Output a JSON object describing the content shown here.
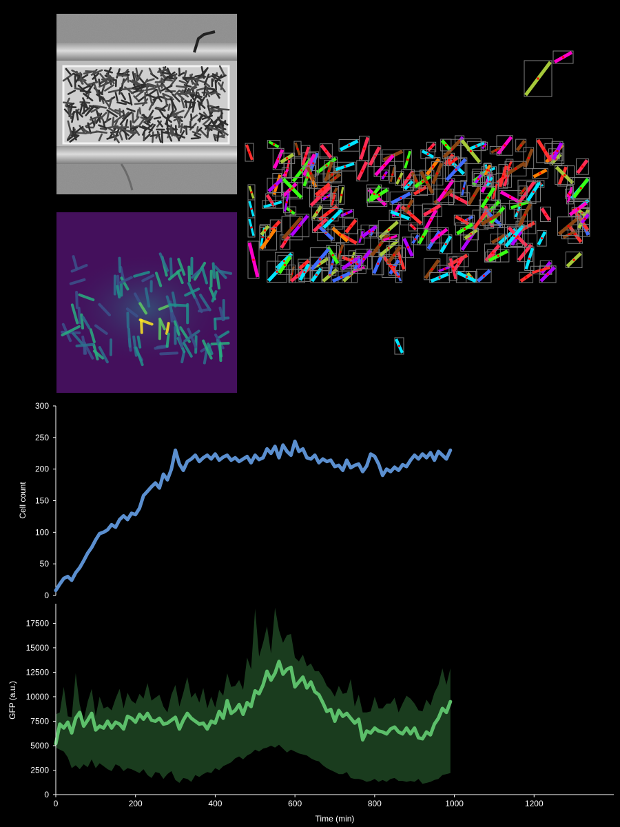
{
  "figure": {
    "background": "#000000",
    "panel_phase": {
      "name": "phase-contrast-image",
      "colormap": "gray"
    },
    "panel_fluor": {
      "name": "fluorescence-image",
      "colormap": "viridis"
    },
    "panel_segmentation": {
      "name": "segmentation-overlay",
      "box_color": "#7f7f7f",
      "centroid_color": "#ff0000"
    }
  },
  "chart_data": [
    {
      "id": "cell-count",
      "type": "line",
      "xlabel": "",
      "ylabel": "Cell count",
      "xlim": [
        0,
        1400
      ],
      "ylim": [
        0,
        300
      ],
      "yticks": [
        0,
        50,
        100,
        150,
        200,
        250,
        300
      ],
      "xticks": [],
      "color": "#5b8fcf",
      "x": [
        0,
        10,
        20,
        30,
        40,
        50,
        60,
        70,
        80,
        90,
        100,
        110,
        120,
        130,
        140,
        150,
        160,
        170,
        180,
        190,
        200,
        210,
        220,
        230,
        240,
        250,
        260,
        270,
        280,
        290,
        300,
        310,
        320,
        330,
        340,
        350,
        360,
        370,
        380,
        390,
        400,
        410,
        420,
        430,
        440,
        450,
        460,
        470,
        480,
        490,
        500,
        510,
        520,
        530,
        540,
        550,
        560,
        570,
        580,
        590,
        600,
        610,
        620,
        630,
        640,
        650,
        660,
        670,
        680,
        690,
        700,
        710,
        720,
        730,
        740,
        750,
        760,
        770,
        780,
        790,
        800,
        810,
        820,
        830,
        840,
        850,
        860,
        870,
        880,
        890,
        900,
        910,
        920,
        930,
        940,
        950,
        960,
        970,
        980,
        990
      ],
      "values": [
        8,
        18,
        27,
        30,
        24,
        36,
        44,
        55,
        67,
        76,
        88,
        98,
        100,
        104,
        112,
        108,
        120,
        126,
        120,
        130,
        128,
        138,
        158,
        165,
        172,
        178,
        170,
        192,
        183,
        200,
        230,
        208,
        198,
        212,
        216,
        222,
        212,
        218,
        222,
        216,
        224,
        214,
        219,
        222,
        214,
        218,
        212,
        216,
        220,
        210,
        222,
        215,
        218,
        232,
        225,
        236,
        218,
        238,
        228,
        222,
        244,
        228,
        232,
        218,
        216,
        222,
        210,
        216,
        212,
        214,
        204,
        206,
        198,
        214,
        202,
        206,
        208,
        196,
        205,
        224,
        220,
        208,
        190,
        200,
        196,
        203,
        198,
        207,
        204,
        214,
        222,
        216,
        224,
        218,
        226,
        214,
        228,
        222,
        216,
        230
      ]
    },
    {
      "id": "gfp",
      "type": "area",
      "xlabel": "Time (min)",
      "ylabel": "GFP (a.u.)",
      "xlim": [
        0,
        1400
      ],
      "ylim": [
        0,
        19500
      ],
      "yticks": [
        0,
        2500,
        5000,
        7500,
        10000,
        12500,
        15000,
        17500
      ],
      "xticks": [
        0,
        200,
        400,
        600,
        800,
        1000,
        1200
      ],
      "line_color": "#5cbf6a",
      "band_color": "#1a3c1e",
      "x": [
        0,
        10,
        20,
        30,
        40,
        50,
        60,
        70,
        80,
        90,
        100,
        110,
        120,
        130,
        140,
        150,
        160,
        170,
        180,
        190,
        200,
        210,
        220,
        230,
        240,
        250,
        260,
        270,
        280,
        290,
        300,
        310,
        320,
        330,
        340,
        350,
        360,
        370,
        380,
        390,
        400,
        410,
        420,
        430,
        440,
        450,
        460,
        470,
        480,
        490,
        500,
        510,
        520,
        530,
        540,
        550,
        560,
        570,
        580,
        590,
        600,
        610,
        620,
        630,
        640,
        650,
        660,
        670,
        680,
        690,
        700,
        710,
        720,
        730,
        740,
        750,
        760,
        770,
        780,
        790,
        800,
        810,
        820,
        830,
        840,
        850,
        860,
        870,
        880,
        890,
        900,
        910,
        920,
        930,
        940,
        950,
        960,
        970,
        980,
        990
      ],
      "series": [
        {
          "role": "mean",
          "values": [
            5200,
            7200,
            6800,
            7400,
            6300,
            7800,
            8400,
            7000,
            7600,
            8300,
            6600,
            7000,
            6800,
            7500,
            6800,
            7400,
            7200,
            6700,
            8000,
            7800,
            7400,
            8200,
            7700,
            8300,
            7600,
            7500,
            7800,
            7200,
            7300,
            7600,
            7900,
            6700,
            7600,
            8300,
            7800,
            7500,
            7200,
            7300,
            6700,
            7500,
            7300,
            8500,
            7800,
            9600,
            8300,
            8600,
            9200,
            8200,
            9400,
            9000,
            10600,
            10300,
            11200,
            12600,
            11700,
            12400,
            13600,
            12300,
            12800,
            13000,
            11000,
            11500,
            12000,
            10900,
            11500,
            10500,
            10200,
            9400,
            8500,
            8700,
            7500,
            8600,
            8000,
            8300,
            7800,
            7300,
            7700,
            5600,
            6500,
            6300,
            6800,
            6500,
            6400,
            6200,
            6700,
            6900,
            6400,
            6200,
            6800,
            6200,
            6800,
            5800,
            5700,
            6400,
            6100,
            7200,
            7800,
            8800,
            8400,
            9500
          ]
        },
        {
          "role": "upper",
          "values": [
            8200,
            8400,
            11000,
            8000,
            7900,
            12400,
            9200,
            7600,
            9500,
            10800,
            8000,
            10000,
            8800,
            9000,
            8600,
            9800,
            10800,
            8800,
            10400,
            9600,
            9300,
            10300,
            9800,
            11400,
            9600,
            9900,
            10200,
            9000,
            8400,
            10200,
            11200,
            9000,
            10400,
            12000,
            9900,
            10400,
            9400,
            10900,
            8800,
            10000,
            8900,
            10700,
            10100,
            12400,
            11000,
            11100,
            11700,
            10700,
            14000,
            12800,
            19000,
            14100,
            15500,
            17200,
            14400,
            19100,
            16800,
            15500,
            16300,
            16400,
            14000,
            13600,
            14300,
            13100,
            13400,
            12600,
            12600,
            12000,
            11100,
            10700,
            10000,
            11100,
            10300,
            10400,
            11800,
            9000,
            10200,
            8400,
            8400,
            8500,
            10000,
            8800,
            8800,
            9300,
            9300,
            9900,
            8400,
            9300,
            10100,
            9800,
            9300,
            8600,
            8500,
            9700,
            9100,
            10400,
            11200,
            12900,
            11200,
            12900
          ]
        },
        {
          "role": "lower",
          "values": [
            4800,
            4600,
            4400,
            3800,
            2700,
            3000,
            2600,
            3100,
            2800,
            3600,
            2700,
            3200,
            2900,
            2600,
            2400,
            3100,
            2900,
            2400,
            2700,
            2600,
            2400,
            2200,
            2600,
            2000,
            1700,
            2300,
            2200,
            1600,
            2100,
            2400,
            1500,
            1200,
            1700,
            1600,
            1300,
            2000,
            1800,
            2100,
            2300,
            2200,
            2700,
            2500,
            2900,
            3100,
            3300,
            3700,
            3900,
            3600,
            4000,
            4200,
            4600,
            4400,
            4700,
            4800,
            5000,
            4800,
            5100,
            4700,
            4300,
            4600,
            4400,
            4200,
            4100,
            4000,
            3700,
            3500,
            3400,
            3000,
            2700,
            2500,
            2300,
            2100,
            2100,
            2300,
            1700,
            1600,
            1600,
            1500,
            1300,
            1400,
            1600,
            1300,
            1500,
            1300,
            1600,
            1700,
            1400,
            1400,
            1300,
            1400,
            1300,
            1600,
            1100,
            1200,
            1300,
            1500,
            1600,
            2000,
            2100,
            2200
          ]
        }
      ]
    }
  ]
}
